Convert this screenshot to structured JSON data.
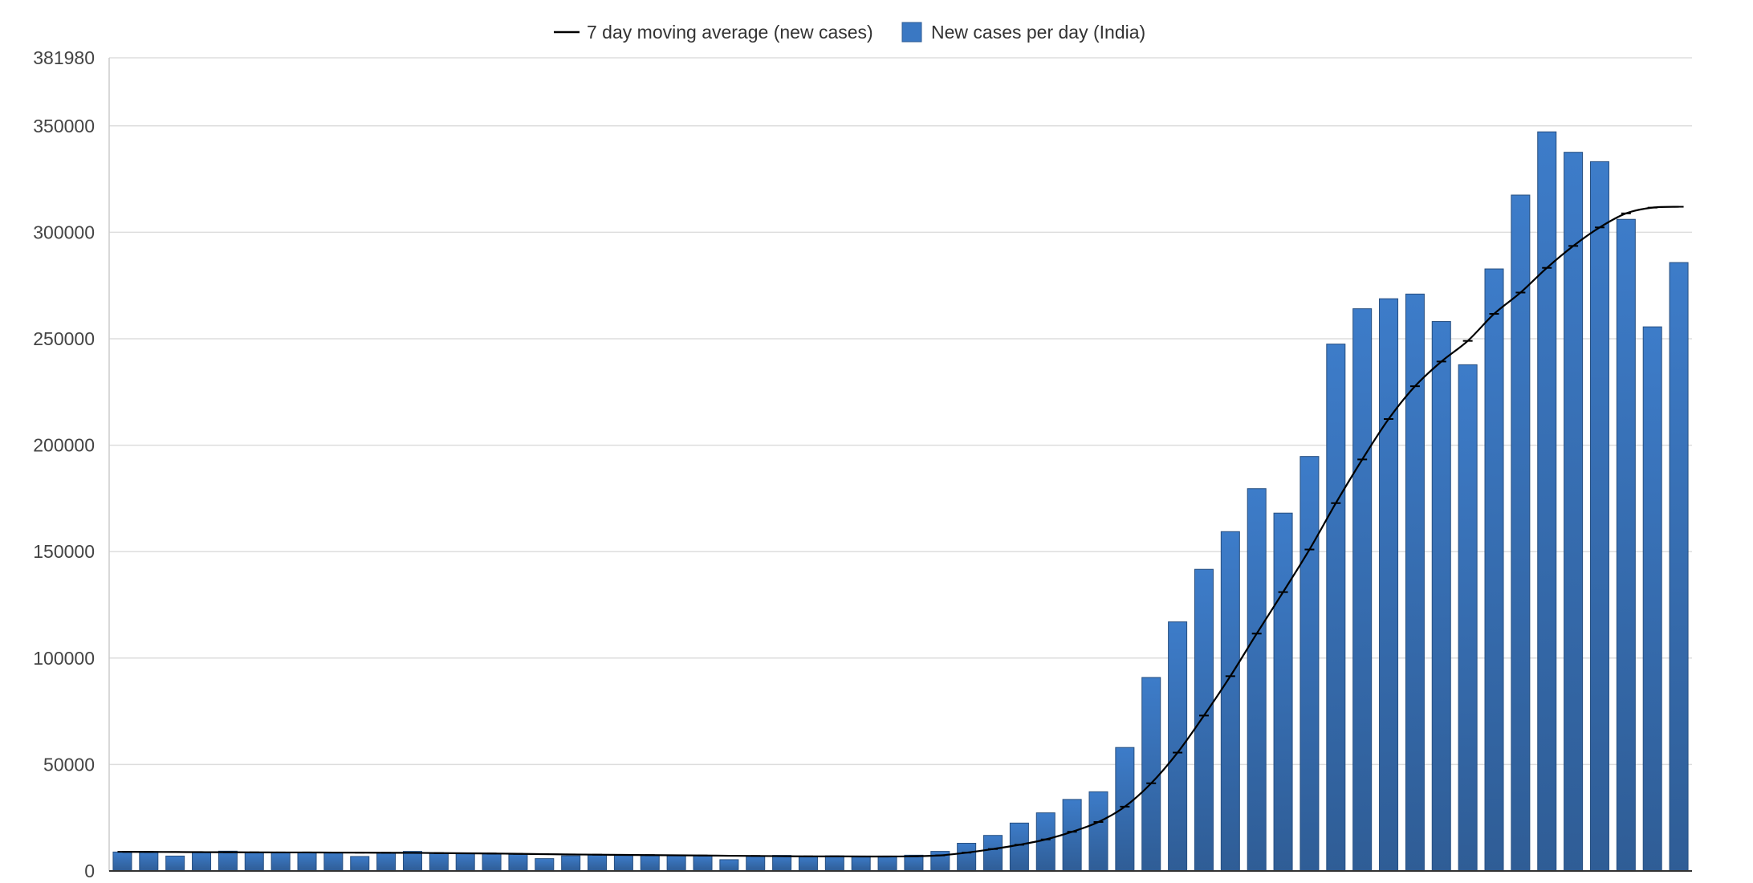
{
  "chart_data": {
    "type": "bar",
    "title": "",
    "xlabel": "",
    "ylabel": "",
    "ylim": [
      0,
      381980
    ],
    "y_ticks": [
      0,
      50000,
      100000,
      150000,
      200000,
      250000,
      300000,
      350000,
      381980
    ],
    "y_tick_labels": [
      "0",
      "50000",
      "100000",
      "150000",
      "200000",
      "250000",
      "300000",
      "350000",
      "381980"
    ],
    "grid": "horizontal",
    "legend_position": "top-center",
    "legend": [
      {
        "label": "7 day moving average (new cases)",
        "kind": "line",
        "color": "#000000"
      },
      {
        "label": "New cases per day (India)",
        "kind": "bar",
        "color": "#3a78c3"
      }
    ],
    "series": [
      {
        "name": "New cases per day (India)",
        "kind": "bar",
        "color": "#3a78c3",
        "values": [
          8900,
          9100,
          7000,
          8800,
          9300,
          8700,
          8600,
          8700,
          8800,
          6800,
          8600,
          9200,
          8500,
          8300,
          8200,
          7800,
          5800,
          7100,
          7700,
          7300,
          7300,
          7200,
          7200,
          5300,
          7000,
          7300,
          7000,
          7100,
          7000,
          7000,
          7400,
          9200,
          13000,
          16700,
          22500,
          27300,
          33600,
          37200,
          58000,
          90900,
          117000,
          141700,
          159400,
          179600,
          168100,
          194700,
          247500,
          264100,
          268800,
          271000,
          258100,
          237800,
          282800,
          317500,
          347200,
          337600,
          333200,
          306100,
          255600,
          285800
        ]
      },
      {
        "name": "7 day moving average (new cases)",
        "kind": "line",
        "color": "#000000",
        "values": [
          9000,
          8950,
          8900,
          8850,
          8800,
          8750,
          8700,
          8700,
          8650,
          8600,
          8550,
          8500,
          8400,
          8300,
          8200,
          8050,
          7900,
          7750,
          7650,
          7550,
          7450,
          7350,
          7250,
          7150,
          7050,
          6950,
          6850,
          6850,
          6800,
          6800,
          6900,
          7300,
          8600,
          10300,
          12300,
          14800,
          18400,
          23000,
          30200,
          41200,
          55600,
          73000,
          91500,
          111500,
          131000,
          151000,
          172800,
          193300,
          212300,
          227700,
          239300,
          249000,
          261700,
          271700,
          283300,
          293600,
          302300,
          308900,
          311600,
          312000
        ]
      }
    ]
  }
}
